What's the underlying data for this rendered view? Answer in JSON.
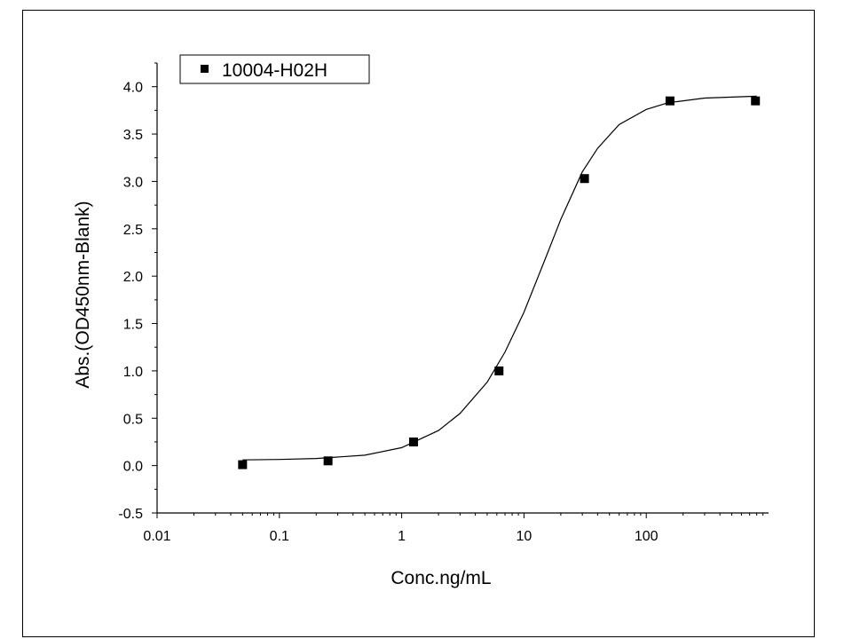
{
  "chart_data": {
    "type": "scatter",
    "title": "",
    "xlabel": "Conc.ng/mL",
    "ylabel": "Abs.(OD450nm-Blank)",
    "x_scale": "log",
    "xlim": [
      0.01,
      1000
    ],
    "ylim": [
      -0.5,
      4.25
    ],
    "x_ticks": [
      {
        "value": 0.01,
        "label": "0.01"
      },
      {
        "value": 0.1,
        "label": "0.1"
      },
      {
        "value": 1,
        "label": "1"
      },
      {
        "value": 10,
        "label": "10"
      },
      {
        "value": 100,
        "label": "100"
      }
    ],
    "y_ticks": [
      {
        "value": -0.5,
        "label": "-0.5"
      },
      {
        "value": 0,
        "label": "0.0"
      },
      {
        "value": 0.5,
        "label": "0.5"
      },
      {
        "value": 1,
        "label": "1.0"
      },
      {
        "value": 1.5,
        "label": "1.5"
      },
      {
        "value": 2,
        "label": "2.0"
      },
      {
        "value": 2.5,
        "label": "2.5"
      },
      {
        "value": 3,
        "label": "3.0"
      },
      {
        "value": 3.5,
        "label": "3.5"
      },
      {
        "value": 4,
        "label": "4.0"
      }
    ],
    "grid": false,
    "legend": {
      "position": "top-left",
      "entries": [
        "10004-H02H"
      ]
    },
    "series": [
      {
        "name": "10004-H02H",
        "marker": "square",
        "color": "#000000",
        "x": [
          0.05,
          0.25,
          1.25,
          6.25,
          31.25,
          156.25,
          781.25
        ],
        "y": [
          0.01,
          0.05,
          0.25,
          1.0,
          3.03,
          3.85,
          3.85
        ]
      }
    ],
    "fit_curve": {
      "type": "4PL",
      "color": "#000000",
      "x": [
        0.05,
        0.1,
        0.2,
        0.5,
        1,
        2,
        3,
        5,
        7,
        10,
        15,
        20,
        30,
        40,
        60,
        100,
        150,
        300,
        800
      ],
      "y": [
        0.06,
        0.065,
        0.075,
        0.11,
        0.19,
        0.37,
        0.55,
        0.88,
        1.2,
        1.62,
        2.19,
        2.6,
        3.1,
        3.35,
        3.6,
        3.76,
        3.83,
        3.88,
        3.9
      ]
    }
  }
}
